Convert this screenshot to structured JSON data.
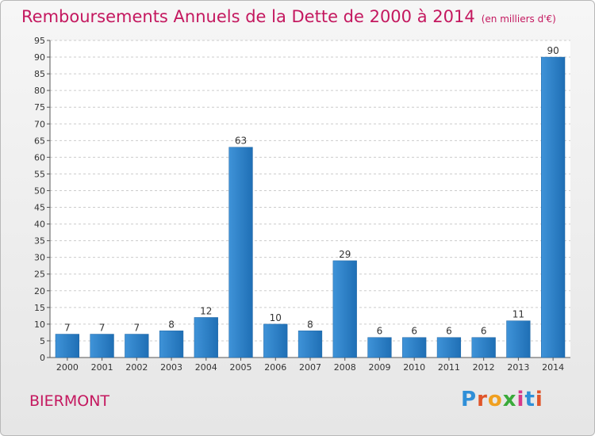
{
  "chart_data": {
    "type": "bar",
    "title": "Remboursements Annuels de la Dette de 2000 à 2014",
    "subtitle": "(en milliers d'€)",
    "categories": [
      "2000",
      "2001",
      "2002",
      "2003",
      "2004",
      "2005",
      "2006",
      "2007",
      "2008",
      "2009",
      "2010",
      "2011",
      "2012",
      "2013",
      "2014"
    ],
    "values": [
      7,
      7,
      7,
      8,
      12,
      63,
      10,
      8,
      29,
      6,
      6,
      6,
      6,
      11,
      90
    ],
    "ylim": [
      0,
      95
    ],
    "yticks": [
      0,
      5,
      10,
      15,
      20,
      25,
      30,
      35,
      40,
      45,
      50,
      55,
      60,
      65,
      70,
      75,
      80,
      85,
      90,
      95
    ],
    "xlabel": "",
    "ylabel": "",
    "grid": "horizontal",
    "bar_color": "#3f93d8",
    "bar_color_dark": "#1f6fb5"
  },
  "footer": {
    "commune": "BIERMONT",
    "logo_letters": [
      "P",
      "r",
      "o",
      "x",
      "i",
      "t",
      "i"
    ]
  },
  "colors": {
    "title": "#c4185f",
    "grid": "#cccccc"
  }
}
